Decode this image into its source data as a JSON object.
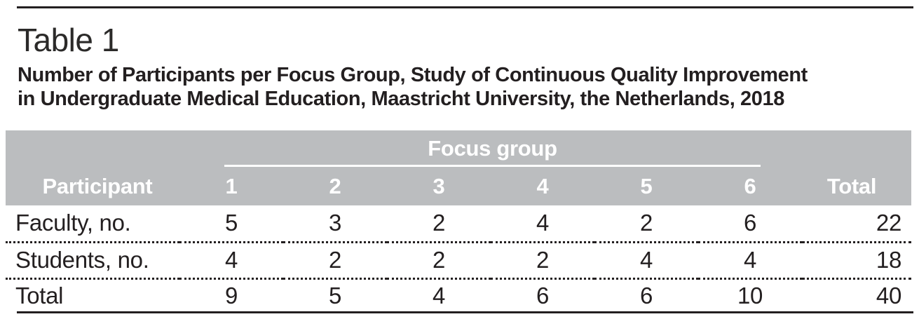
{
  "page": {
    "table_label": "Table 1",
    "title_line1": "Number of Participants per Focus Group, Study of Continuous Quality Improvement",
    "title_line2": "in Undergraduate Medical Education, Maastricht University, the Netherlands, 2018"
  },
  "table": {
    "group_header": "Focus group",
    "columns": [
      "Participant",
      "1",
      "2",
      "3",
      "4",
      "5",
      "6",
      "Total"
    ],
    "rows": [
      {
        "label": "Faculty, no.",
        "values": [
          "5",
          "3",
          "2",
          "4",
          "2",
          "6"
        ],
        "total": "22"
      },
      {
        "label": "Students, no.",
        "values": [
          "4",
          "2",
          "2",
          "2",
          "4",
          "4"
        ],
        "total": "18"
      },
      {
        "label": "Total",
        "values": [
          "9",
          "5",
          "4",
          "6",
          "6",
          "10"
        ],
        "total": "40"
      }
    ]
  },
  "colors": {
    "header_background": "#bbbdbf",
    "header_text": "#ffffff",
    "body_text": "#231f20",
    "rule": "#231f20",
    "page_background": "#ffffff"
  }
}
